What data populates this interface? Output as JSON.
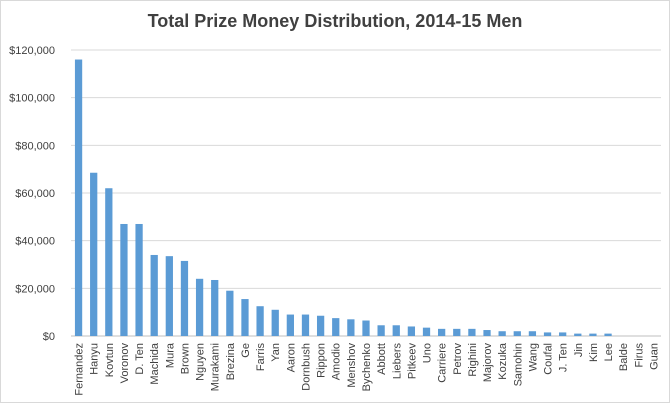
{
  "chart_data": {
    "type": "bar",
    "title": "Total Prize Money Distribution, 2014-15 Men",
    "xlabel": "",
    "ylabel": "",
    "ylim": [
      0,
      120000
    ],
    "yticks": [
      0,
      20000,
      40000,
      60000,
      80000,
      100000,
      120000
    ],
    "ytick_labels": [
      "$0",
      "$20,000",
      "$40,000",
      "$60,000",
      "$80,000",
      "$100,000",
      "$120,000"
    ],
    "grid": true,
    "legend": "none",
    "bar_color": "#5b9bd5",
    "categories": [
      "Fernandez",
      "Hanyu",
      "Kovtun",
      "Voronov",
      "D. Ten",
      "Machida",
      "Mura",
      "Brown",
      "Nguyen",
      "Murakami",
      "Brezina",
      "Ge",
      "Farris",
      "Yan",
      "Aaron",
      "Dornbush",
      "Rippon",
      "Amodio",
      "Menshov",
      "Bychenko",
      "Abbott",
      "Liebers",
      "Pitkeev",
      "Uno",
      "Carriere",
      "Petrov",
      "Righini",
      "Majorov",
      "Kozuka",
      "Samohin",
      "Wang",
      "Coufal",
      "J. Ten",
      "Jin",
      "Kim",
      "Lee",
      "Balde",
      "Firus",
      "Guan"
    ],
    "values": [
      116000,
      68500,
      62000,
      47000,
      47000,
      34000,
      33500,
      31500,
      24000,
      23500,
      19000,
      15500,
      12500,
      11000,
      9000,
      9000,
      8500,
      7500,
      7000,
      6500,
      4500,
      4500,
      4000,
      3500,
      3000,
      3000,
      3000,
      2500,
      2000,
      2000,
      2000,
      1500,
      1500,
      1000,
      1000,
      1000,
      0,
      0,
      0
    ]
  }
}
